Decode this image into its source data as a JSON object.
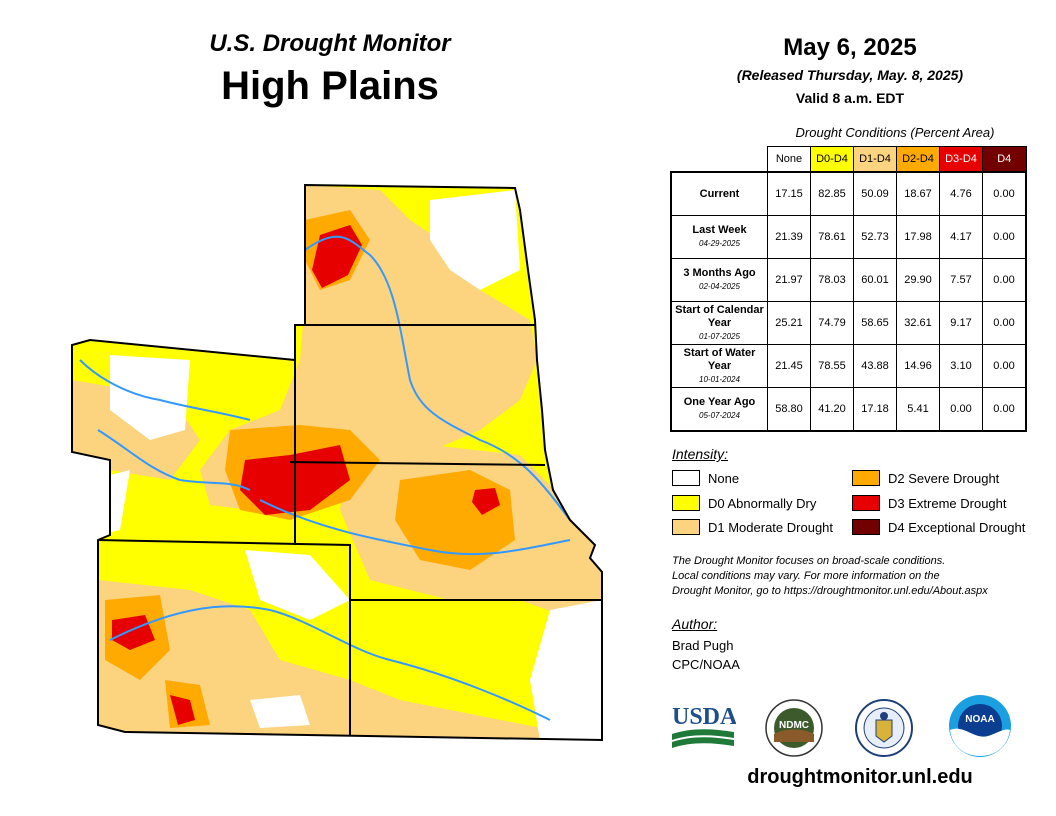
{
  "header": {
    "monitor_title": "U.S. Drought Monitor",
    "region_title": "High Plains",
    "date": "May 6, 2025",
    "released": "(Released Thursday, May. 8, 2025)",
    "valid": "Valid 8 a.m. EDT"
  },
  "table": {
    "caption": "Drought Conditions (Percent Area)",
    "columns": [
      {
        "label": "None",
        "color": "#ffffff",
        "text_color": "#000000"
      },
      {
        "label": "D0-D4",
        "color": "#ffff00",
        "text_color": "#000000"
      },
      {
        "label": "D1-D4",
        "color": "#fcd37f",
        "text_color": "#000000"
      },
      {
        "label": "D2-D4",
        "color": "#ffaa00",
        "text_color": "#000000"
      },
      {
        "label": "D3-D4",
        "color": "#e60000",
        "text_color": "#ffffff"
      },
      {
        "label": "D4",
        "color": "#730000",
        "text_color": "#ffffff"
      }
    ],
    "rows": [
      {
        "label": "Current",
        "date": "",
        "values": [
          "17.15",
          "82.85",
          "50.09",
          "18.67",
          "4.76",
          "0.00"
        ]
      },
      {
        "label": "Last Week",
        "date": "04-29-2025",
        "values": [
          "21.39",
          "78.61",
          "52.73",
          "17.98",
          "4.17",
          "0.00"
        ]
      },
      {
        "label": "3 Months Ago",
        "date": "02-04-2025",
        "values": [
          "21.97",
          "78.03",
          "60.01",
          "29.90",
          "7.57",
          "0.00"
        ]
      },
      {
        "label": "Start of Calendar Year",
        "date": "01-07-2025",
        "values": [
          "25.21",
          "74.79",
          "58.65",
          "32.61",
          "9.17",
          "0.00"
        ]
      },
      {
        "label": "Start of Water Year",
        "date": "10-01-2024",
        "values": [
          "21.45",
          "78.55",
          "43.88",
          "14.96",
          "3.10",
          "0.00"
        ]
      },
      {
        "label": "One Year Ago",
        "date": "05-07-2024",
        "values": [
          "58.80",
          "41.20",
          "17.18",
          "5.41",
          "0.00",
          "0.00"
        ]
      }
    ]
  },
  "legend": {
    "title": "Intensity:",
    "items": [
      {
        "label": "None",
        "color": "#ffffff"
      },
      {
        "label": "D0 Abnormally Dry",
        "color": "#ffff00"
      },
      {
        "label": "D1 Moderate Drought",
        "color": "#fcd37f"
      },
      {
        "label": "D2 Severe Drought",
        "color": "#ffaa00"
      },
      {
        "label": "D3 Extreme Drought",
        "color": "#e60000"
      },
      {
        "label": "D4 Exceptional Drought",
        "color": "#730000"
      }
    ]
  },
  "note": {
    "line1": "The Drought Monitor focuses on broad-scale conditions.",
    "line2": "Local conditions may vary. For more information on the",
    "line3": "Drought Monitor, go to https://droughtmonitor.unl.edu/About.aspx"
  },
  "author": {
    "title": "Author:",
    "name": "Brad Pugh",
    "org": "CPC/NOAA"
  },
  "logos": {
    "usda": "USDA",
    "ndmc": "NDMC",
    "noaa": "NOAA"
  },
  "footer": {
    "url": "droughtmonitor.unl.edu"
  },
  "colors": {
    "none": "#ffffff",
    "d0": "#ffff00",
    "d1": "#fcd37f",
    "d2": "#ffaa00",
    "d3": "#e60000",
    "d4": "#730000",
    "river": "#3399ff"
  }
}
